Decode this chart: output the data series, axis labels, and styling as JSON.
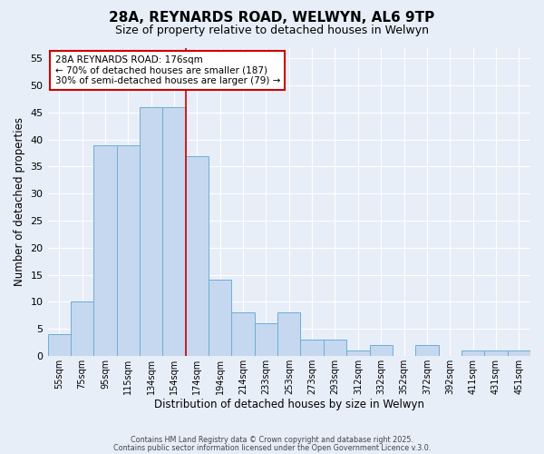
{
  "title": "28A, REYNARDS ROAD, WELWYN, AL6 9TP",
  "subtitle": "Size of property relative to detached houses in Welwyn",
  "xlabel": "Distribution of detached houses by size in Welwyn",
  "ylabel": "Number of detached properties",
  "bar_labels": [
    "55sqm",
    "75sqm",
    "95sqm",
    "115sqm",
    "134sqm",
    "154sqm",
    "174sqm",
    "194sqm",
    "214sqm",
    "233sqm",
    "253sqm",
    "273sqm",
    "293sqm",
    "312sqm",
    "332sqm",
    "352sqm",
    "372sqm",
    "392sqm",
    "411sqm",
    "431sqm",
    "451sqm"
  ],
  "bar_values": [
    4,
    10,
    39,
    39,
    46,
    46,
    37,
    14,
    8,
    6,
    8,
    3,
    3,
    1,
    2,
    0,
    2,
    0,
    1,
    1,
    1
  ],
  "bar_color": "#c5d8f0",
  "bar_edge_color": "#6baed6",
  "background_color": "#e8eef8",
  "grid_color": "#ffffff",
  "ylim": [
    0,
    57
  ],
  "yticks": [
    0,
    5,
    10,
    15,
    20,
    25,
    30,
    35,
    40,
    45,
    50,
    55
  ],
  "property_line_color": "#cc0000",
  "annotation_title": "28A REYNARDS ROAD: 176sqm",
  "annotation_line1": "← 70% of detached houses are smaller (187)",
  "annotation_line2": "30% of semi-detached houses are larger (79) →",
  "annotation_box_color": "#ffffff",
  "annotation_box_edge_color": "#cc0000",
  "footer1": "Contains HM Land Registry data © Crown copyright and database right 2025.",
  "footer2": "Contains public sector information licensed under the Open Government Licence v.3.0."
}
